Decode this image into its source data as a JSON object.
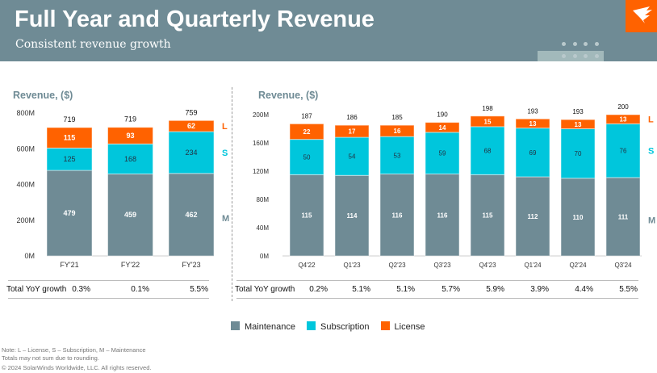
{
  "header": {
    "title": "Full Year and Quarterly Revenue",
    "subtitle": "Consistent revenue growth"
  },
  "colors": {
    "maintenance": "#6f8b95",
    "subscription": "#00c6dc",
    "license": "#ff6200",
    "header": "#6f8b95"
  },
  "chart_data": [
    {
      "type": "bar",
      "stacked": true,
      "title": "Revenue, ($)",
      "categories": [
        "FY'21",
        "FY'22",
        "FY'23"
      ],
      "yticks": [
        "0M",
        "200M",
        "400M",
        "600M",
        "800M"
      ],
      "ylim": [
        0,
        800
      ],
      "series": [
        {
          "name": "Maintenance",
          "key": "M",
          "values": [
            479,
            459,
            462
          ]
        },
        {
          "name": "Subscription",
          "key": "S",
          "values": [
            125,
            168,
            234
          ]
        },
        {
          "name": "License",
          "key": "L",
          "values": [
            115,
            93,
            62
          ]
        }
      ],
      "totals": [
        719,
        719,
        759
      ],
      "growth_label": "Total YoY growth",
      "growth": [
        "0.3%",
        "0.1%",
        "5.5%"
      ]
    },
    {
      "type": "bar",
      "stacked": true,
      "title": "Revenue, ($)",
      "categories": [
        "Q4'22",
        "Q1'23",
        "Q2'23",
        "Q3'23",
        "Q4'23",
        "Q1'24",
        "Q2'24",
        "Q3'24"
      ],
      "yticks": [
        "0M",
        "40M",
        "80M",
        "120M",
        "160M",
        "200M"
      ],
      "ylim": [
        0,
        200
      ],
      "series": [
        {
          "name": "Maintenance",
          "key": "M",
          "values": [
            115,
            114,
            116,
            116,
            115,
            112,
            110,
            111
          ]
        },
        {
          "name": "Subscription",
          "key": "S",
          "values": [
            50,
            54,
            53,
            59,
            68,
            69,
            70,
            76
          ]
        },
        {
          "name": "License",
          "key": "L",
          "values": [
            22,
            17,
            16,
            14,
            15,
            13,
            13,
            13
          ]
        }
      ],
      "totals": [
        187,
        186,
        185,
        190,
        198,
        193,
        193,
        200
      ],
      "growth_label": "Total YoY growth",
      "growth": [
        "0.2%",
        "5.1%",
        "5.1%",
        "5.7%",
        "5.9%",
        "3.9%",
        "4.4%",
        "5.5%"
      ]
    }
  ],
  "legend": [
    "Maintenance",
    "Subscription",
    "License"
  ],
  "footer": {
    "note": "Note: L – License, S – Subscription, M – Maintenance",
    "rounding": "Totals may not sum due to rounding.",
    "copyright": "© 2024 SolarWinds Worldwide, LLC. All rights reserved."
  }
}
